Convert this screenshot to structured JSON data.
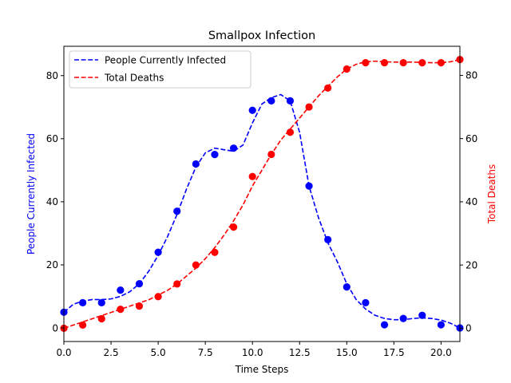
{
  "chart_data": {
    "type": "line",
    "title": "Smallpox Infection",
    "xlabel": "Time Steps",
    "xlim": [
      0,
      21
    ],
    "x_ticks": [
      0,
      2.5,
      5,
      7.5,
      10,
      12.5,
      15,
      17.5,
      20
    ],
    "x_tick_labels": [
      "0.0",
      "2.5",
      "5.0",
      "7.5",
      "10.0",
      "12.5",
      "15.0",
      "17.5",
      "20.0"
    ],
    "grid": false,
    "legend_position": "top-left",
    "axes": {
      "left": {
        "label": "People Currently Infected",
        "color": "#0000ff",
        "ylim": [
          -4.3,
          89.3
        ],
        "ticks": [
          0,
          20,
          40,
          60,
          80
        ]
      },
      "right": {
        "label": "Total Deaths",
        "color": "#ff0000",
        "ylim": [
          -4.2,
          89.2
        ],
        "ticks": [
          0,
          20,
          40,
          60,
          80
        ]
      }
    },
    "series": [
      {
        "name": "People Currently Infected",
        "axis": "left",
        "color": "#0000ff",
        "line_style": "dashed",
        "x": [
          0,
          1,
          2,
          3,
          4,
          5,
          6,
          7,
          8,
          9,
          10,
          11,
          12,
          13,
          14,
          15,
          16,
          17,
          18,
          19,
          20,
          21
        ],
        "points": [
          5,
          8,
          8,
          12,
          14,
          24,
          37,
          52,
          55,
          57,
          69,
          72,
          72,
          45,
          28,
          13,
          8,
          1,
          3,
          4,
          1,
          0
        ],
        "fit_x": [
          0,
          0.5,
          1,
          1.5,
          2,
          2.5,
          3,
          3.5,
          4,
          4.5,
          5,
          5.5,
          6,
          6.5,
          7,
          7.5,
          8,
          8.5,
          9,
          9.5,
          10,
          10.5,
          11,
          11.5,
          12,
          12.5,
          13,
          13.5,
          14,
          14.5,
          15,
          15.5,
          16,
          16.5,
          17,
          17.5,
          18,
          18.5,
          19,
          19.5,
          20,
          20.5,
          21
        ],
        "fit_y": [
          5,
          7.5,
          8.5,
          9,
          9,
          9.2,
          10,
          11.5,
          14,
          18,
          23,
          29,
          36,
          44,
          51,
          55.5,
          57,
          56.5,
          56,
          58,
          65,
          71,
          73,
          74,
          72,
          62,
          45,
          35,
          27,
          21,
          14,
          9,
          6,
          4,
          3,
          2.6,
          2.6,
          3,
          3.2,
          3,
          2.5,
          1.5,
          0
        ]
      },
      {
        "name": "Total Deaths",
        "axis": "right",
        "color": "#ff0000",
        "line_style": "dashed",
        "x": [
          0,
          1,
          2,
          3,
          4,
          5,
          6,
          7,
          8,
          9,
          10,
          11,
          12,
          13,
          14,
          15,
          16,
          17,
          18,
          19,
          20,
          21
        ],
        "points": [
          0,
          1,
          3,
          6,
          7,
          10,
          14,
          20,
          24,
          32,
          48,
          55,
          62,
          70,
          76,
          82,
          84,
          84,
          84,
          84,
          84,
          85
        ],
        "fit_x": [
          0,
          0.5,
          1,
          1.5,
          2,
          2.5,
          3,
          3.5,
          4,
          4.5,
          5,
          5.5,
          6,
          6.5,
          7,
          7.5,
          8,
          8.5,
          9,
          9.5,
          10,
          10.5,
          11,
          11.5,
          12,
          12.5,
          13,
          13.5,
          14,
          14.5,
          15,
          15.5,
          16,
          16.5,
          17,
          17.5,
          18,
          18.5,
          19,
          19.5,
          20,
          20.5,
          21
        ],
        "fit_y": [
          0,
          1,
          2,
          3,
          4,
          5,
          6,
          7,
          8,
          9,
          10.5,
          12,
          14,
          16.5,
          19,
          22,
          25.5,
          29.5,
          34,
          39,
          45,
          50,
          55,
          59.5,
          63,
          66.5,
          70,
          73.5,
          76.5,
          79.5,
          82,
          83.5,
          84.3,
          84.5,
          84.3,
          84.2,
          84.2,
          84.2,
          84.1,
          84,
          84,
          84.3,
          85
        ]
      }
    ]
  }
}
